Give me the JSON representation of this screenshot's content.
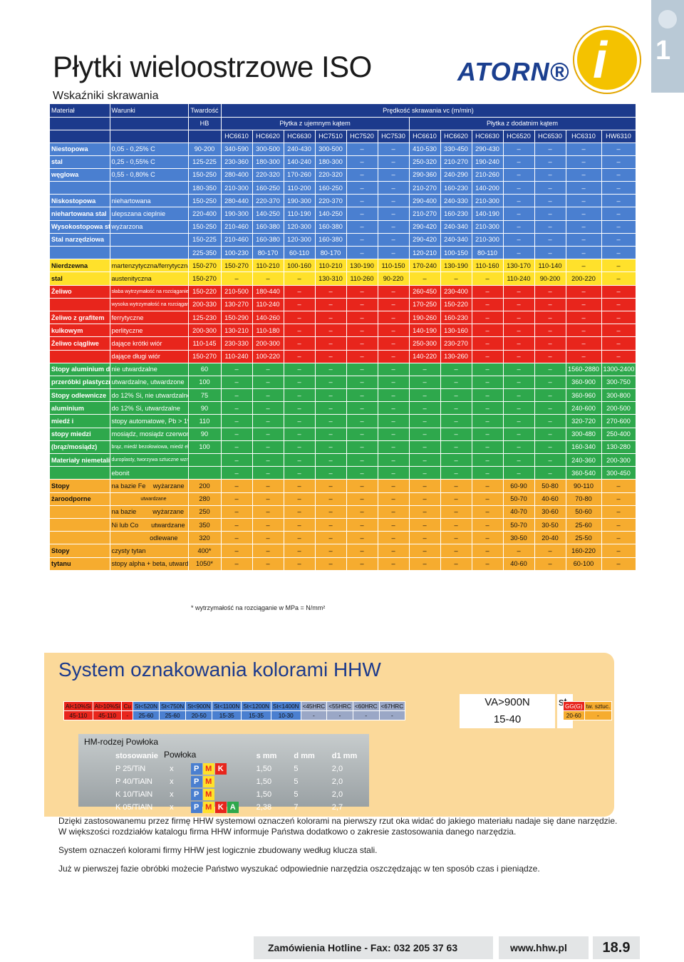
{
  "tab_number": "1",
  "title": "Płytki wieloostrzowe ISO",
  "subtitle": "Wskaźniki skrawania",
  "logo_text": "ATORN®",
  "badge_text": "i",
  "table": {
    "header": {
      "material": "Materiał",
      "conditions": "Warunki",
      "hardness": "Twardość",
      "hb": "HB",
      "speed": "Prędkość skrawania vc (m/min)",
      "group_positive": "Płytka z ujemnym kątem",
      "group_negative": "Płytka z dodatnim kątem",
      "grades": [
        "HC6610",
        "HC6620",
        "HC6630",
        "HC7510",
        "HC7520",
        "HC7530",
        "HC6610",
        "HC6620",
        "HC6630",
        "HC6520",
        "HC6530",
        "HC6310",
        "HW6310"
      ]
    },
    "rows": [
      {
        "c": "blue",
        "m": "Niestopowa",
        "w": "0,05 - 0,25% C",
        "hb": "90-200",
        "v": [
          "340-590",
          "300-500",
          "240-430",
          "300-500",
          "–",
          "–",
          "410-530",
          "330-450",
          "290-430",
          "–",
          "–",
          "–",
          "–"
        ]
      },
      {
        "c": "blue",
        "m": "stal",
        "w": "0,25 - 0,55% C",
        "hb": "125-225",
        "v": [
          "230-360",
          "180-300",
          "140-240",
          "180-300",
          "–",
          "–",
          "250-320",
          "210-270",
          "190-240",
          "–",
          "–",
          "–",
          "–"
        ]
      },
      {
        "c": "blue",
        "m": "węglowa",
        "w": "0,55 - 0,80% C",
        "hb": "150-250",
        "v": [
          "280-400",
          "220-320",
          "170-260",
          "220-320",
          "–",
          "–",
          "290-360",
          "240-290",
          "210-260",
          "–",
          "–",
          "–",
          "–"
        ]
      },
      {
        "c": "blue",
        "m": "",
        "w": "",
        "hb": "180-350",
        "v": [
          "210-300",
          "160-250",
          "110-200",
          "160-250",
          "–",
          "–",
          "210-270",
          "160-230",
          "140-200",
          "–",
          "–",
          "–",
          "–"
        ]
      },
      {
        "c": "blue",
        "m": "Niskostopowa",
        "w": "niehartowana",
        "hb": "150-250",
        "v": [
          "280-440",
          "220-370",
          "190-300",
          "220-370",
          "–",
          "–",
          "290-400",
          "240-330",
          "210-300",
          "–",
          "–",
          "–",
          "–"
        ]
      },
      {
        "c": "blue",
        "m": "niehartowana stal",
        "w": "ulepszana cieplnie",
        "hb": "220-400",
        "v": [
          "190-300",
          "140-250",
          "110-190",
          "140-250",
          "–",
          "–",
          "210-270",
          "160-230",
          "140-190",
          "–",
          "–",
          "–",
          "–"
        ]
      },
      {
        "c": "blue",
        "m": "Wysokostopowa stal",
        "w": "wyżarzona",
        "hb": "150-250",
        "v": [
          "210-460",
          "160-380",
          "120-300",
          "160-380",
          "–",
          "–",
          "290-420",
          "240-340",
          "210-300",
          "–",
          "–",
          "–",
          "–"
        ]
      },
      {
        "c": "blue",
        "m": "Stal narzędziowa",
        "w": "",
        "hb": "150-225",
        "v": [
          "210-460",
          "160-380",
          "120-300",
          "160-380",
          "–",
          "–",
          "290-420",
          "240-340",
          "210-300",
          "–",
          "–",
          "–",
          "–"
        ]
      },
      {
        "c": "blue",
        "m": "",
        "w": "",
        "hb": "225-350",
        "v": [
          "100-230",
          "80-170",
          "60-110",
          "80-170",
          "–",
          "–",
          "120-210",
          "100-150",
          "80-110",
          "–",
          "–",
          "–",
          "–"
        ]
      },
      {
        "c": "yellow",
        "m": "Nierdzewna",
        "w": "martenzytyczna/ferrytyczna",
        "hb": "150-270",
        "v": [
          "150-270",
          "110-210",
          "100-160",
          "110-210",
          "130-190",
          "110-150",
          "170-240",
          "130-190",
          "110-160",
          "130-170",
          "110-140",
          "–",
          "–"
        ]
      },
      {
        "c": "yellow",
        "m": "stal",
        "w": "austenityczna",
        "hb": "150-270",
        "v": [
          "–",
          "–",
          "–",
          "130-310",
          "110-260",
          "90-220",
          "–",
          "–",
          "–",
          "110-240",
          "90-200",
          "200-220",
          "–"
        ]
      },
      {
        "c": "red",
        "m": "Żeliwo",
        "w": "słaba wytrzymałość na rozciąganie",
        "hb": "150-220",
        "v": [
          "210-500",
          "180-440",
          "–",
          "–",
          "–",
          "–",
          "260-450",
          "230-400",
          "–",
          "–",
          "–",
          "–",
          "–"
        ]
      },
      {
        "c": "red",
        "m": "",
        "w": "wysoka wytrzymałość na rozciąganie",
        "hb": "200-330",
        "v": [
          "130-270",
          "110-240",
          "–",
          "–",
          "–",
          "–",
          "170-250",
          "150-220",
          "–",
          "–",
          "–",
          "–",
          "–"
        ]
      },
      {
        "c": "red",
        "m": "Żeliwo z grafitem",
        "w": "ferrytyczne",
        "hb": "125-230",
        "v": [
          "150-290",
          "140-260",
          "–",
          "–",
          "–",
          "–",
          "190-260",
          "160-230",
          "–",
          "–",
          "–",
          "–",
          "–"
        ]
      },
      {
        "c": "red",
        "m": "kulkowym",
        "w": "perlityczne",
        "hb": "200-300",
        "v": [
          "130-210",
          "110-180",
          "–",
          "–",
          "–",
          "–",
          "140-190",
          "130-160",
          "–",
          "–",
          "–",
          "–",
          "–"
        ]
      },
      {
        "c": "red",
        "m": "Żeliwo ciągliwe",
        "w": "dające krótki wiór",
        "hb": "110-145",
        "v": [
          "230-330",
          "200-300",
          "–",
          "–",
          "–",
          "–",
          "250-300",
          "230-270",
          "–",
          "–",
          "–",
          "–",
          "–"
        ]
      },
      {
        "c": "red",
        "m": "",
        "w": "dające długi wiór",
        "hb": "150-270",
        "v": [
          "110-240",
          "100-220",
          "–",
          "–",
          "–",
          "–",
          "140-220",
          "130-260",
          "–",
          "–",
          "–",
          "–",
          "–"
        ]
      },
      {
        "c": "green",
        "m": "Stopy aluminium do",
        "w": "nie utwardzalne",
        "hb": "60",
        "v": [
          "–",
          "–",
          "–",
          "–",
          "–",
          "–",
          "–",
          "–",
          "–",
          "–",
          "–",
          "1560-2880",
          "1300-2400"
        ]
      },
      {
        "c": "green",
        "m": "przeróbki plastycznej",
        "w": "utwardzalne, utwardzone",
        "hb": "100",
        "v": [
          "–",
          "–",
          "–",
          "–",
          "–",
          "–",
          "–",
          "–",
          "–",
          "–",
          "–",
          "360-900",
          "300-750"
        ]
      },
      {
        "c": "green",
        "m": "Stopy odlewnicze",
        "w": "do 12% Si, nie utwardzalne",
        "hb": "75",
        "v": [
          "–",
          "–",
          "–",
          "–",
          "–",
          "–",
          "–",
          "–",
          "–",
          "–",
          "–",
          "360-960",
          "300-800"
        ]
      },
      {
        "c": "green",
        "m": "aluminium",
        "w": "do 12% Si, utwardzalne",
        "hb": "90",
        "v": [
          "–",
          "–",
          "–",
          "–",
          "–",
          "–",
          "–",
          "–",
          "–",
          "–",
          "–",
          "240-600",
          "200-500"
        ]
      },
      {
        "c": "green",
        "m": "miedź i",
        "w": "stopy automatowe, Pb > 1%",
        "hb": "110",
        "v": [
          "–",
          "–",
          "–",
          "–",
          "–",
          "–",
          "–",
          "–",
          "–",
          "–",
          "–",
          "320-720",
          "270-600"
        ]
      },
      {
        "c": "green",
        "m": "stopy miedzi",
        "w": "mosiądz, mosiądz czerwony",
        "hb": "90",
        "v": [
          "–",
          "–",
          "–",
          "–",
          "–",
          "–",
          "–",
          "–",
          "–",
          "–",
          "–",
          "300-480",
          "250-400"
        ]
      },
      {
        "c": "green",
        "m": "(brąz/mosiądz)",
        "w": "brąz, miedź bezołowiowa, miedź elektrolityczna",
        "hb": "100",
        "v": [
          "–",
          "–",
          "–",
          "–",
          "–",
          "–",
          "–",
          "–",
          "–",
          "–",
          "–",
          "160-340",
          "130-280"
        ]
      },
      {
        "c": "green",
        "m": "Materiały niemetaliczne",
        "w": "duroplasty, tworzywa sztuczne wzmocnione włóknem",
        "hb": "",
        "v": [
          "–",
          "–",
          "–",
          "–",
          "–",
          "–",
          "–",
          "–",
          "–",
          "–",
          "–",
          "240-360",
          "200-300"
        ]
      },
      {
        "c": "green",
        "m": "",
        "w": "ebonit",
        "hb": "",
        "v": [
          "–",
          "–",
          "–",
          "–",
          "–",
          "–",
          "–",
          "–",
          "–",
          "–",
          "–",
          "360-540",
          "300-450"
        ]
      },
      {
        "c": "orange",
        "m": "Stopy",
        "w": "na bazie Fe    wyżarzane",
        "hb": "200",
        "v": [
          "–",
          "–",
          "–",
          "–",
          "–",
          "–",
          "–",
          "–",
          "–",
          "60-90",
          "50-80",
          "90-110",
          "–"
        ]
      },
      {
        "c": "orange",
        "m": "żaroodporne",
        "w": "                     utwardzane",
        "hb": "280",
        "v": [
          "–",
          "–",
          "–",
          "–",
          "–",
          "–",
          "–",
          "–",
          "–",
          "50-70",
          "40-60",
          "70-80",
          "–"
        ]
      },
      {
        "c": "orange",
        "m": "",
        "w": "na bazie         wyżarzane",
        "hb": "250",
        "v": [
          "–",
          "–",
          "–",
          "–",
          "–",
          "–",
          "–",
          "–",
          "–",
          "40-70",
          "30-60",
          "50-60",
          "–"
        ]
      },
      {
        "c": "orange",
        "m": "",
        "w": "Ni lub Co       utwardzane",
        "hb": "350",
        "v": [
          "–",
          "–",
          "–",
          "–",
          "–",
          "–",
          "–",
          "–",
          "–",
          "50-70",
          "30-50",
          "25-60",
          "–"
        ]
      },
      {
        "c": "orange",
        "m": "",
        "w": "                     odlewane",
        "hb": "320",
        "v": [
          "–",
          "–",
          "–",
          "–",
          "–",
          "–",
          "–",
          "–",
          "–",
          "30-50",
          "20-40",
          "25-50",
          "–"
        ]
      },
      {
        "c": "orange",
        "m": "Stopy",
        "w": "czysty tytan",
        "hb": "400*",
        "v": [
          "–",
          "–",
          "–",
          "–",
          "–",
          "–",
          "–",
          "–",
          "–",
          "–",
          "–",
          "160-220",
          "–"
        ]
      },
      {
        "c": "orange",
        "m": "tytanu",
        "w": "stopy alpha + beta, utwardzane",
        "hb": "1050*",
        "v": [
          "–",
          "–",
          "–",
          "–",
          "–",
          "–",
          "–",
          "–",
          "–",
          "40-60",
          "–",
          "60-100",
          "–"
        ]
      }
    ]
  },
  "footnote": "* wytrzymałość na rozciąganie w MPa = N/mm²",
  "system": {
    "title": "System oznakowania kolorami HHW",
    "scale_top": [
      {
        "t": "Al<10%Si",
        "c": "#e8251c"
      },
      {
        "t": "Al>10%Si",
        "c": "#e8251c"
      },
      {
        "t": "Cu",
        "c": "#e8251c"
      },
      {
        "t": "St<520N",
        "c": "#4a7fd0"
      },
      {
        "t": "St<750N",
        "c": "#4a7fd0"
      },
      {
        "t": "St<900N",
        "c": "#4a7fd0"
      },
      {
        "t": "St<1100N",
        "c": "#4a7fd0"
      },
      {
        "t": "St<1200N",
        "c": "#4a7fd0"
      },
      {
        "t": "St<1400N",
        "c": "#4a7fd0"
      },
      {
        "t": "<45HRC",
        "c": "#9aa7c6"
      },
      {
        "t": "<55HRC",
        "c": "#9aa7c6"
      },
      {
        "t": "<60HRC",
        "c": "#9aa7c6"
      },
      {
        "t": "<67HRC",
        "c": "#9aa7c6"
      }
    ],
    "scale_bottom": [
      "45-110",
      "45-110",
      "-",
      "25-60",
      "25-60",
      "20-50",
      "15-35",
      "15-35",
      "10-30",
      "-",
      "-",
      "-",
      "-"
    ],
    "big_top": "VA>900N",
    "big_bottom": "15-40",
    "big_side": "st",
    "tail_top": [
      "GG(G)",
      "tw. sztuc."
    ],
    "tail_bottom": [
      "20-60",
      "-"
    ],
    "tool": {
      "label1": "HM-rodzej Powłoka",
      "label2": "Powłoka",
      "header": [
        "stosowanie",
        "s mm",
        "d mm",
        "d1 mm"
      ],
      "rows": [
        [
          "P 25/TiN",
          "x",
          "PMK",
          "1,50",
          "5",
          "2,0"
        ],
        [
          "P 40/TiAlN",
          "x",
          "PM",
          "1,50",
          "5",
          "2,0"
        ],
        [
          "K 10/TiAlN",
          "x",
          "PM",
          "1,50",
          "5",
          "2,0"
        ],
        [
          "K 05/TiAlN",
          "x",
          "PMKA",
          "2,38",
          "7",
          "2,7"
        ]
      ]
    }
  },
  "paragraphs": {
    "p1": "Dzięki zastosowanemu przez firmę HHW systemowi oznaczeń kolorami na pierwszy rzut oka widać do jakiego materiału nadaje się dane narzędzie. W większości rozdziałów katalogu firma HHW informuje Państwa dodatkowo o zakresie zastosowania danego narzędzia.",
    "p2": "System oznaczeń kolorami firmy HHW jest logicznie zbudowany według klucza stali.",
    "p3": "Już w pierwszej fazie obróbki możecie Państwo wyszukać odpowiednie narzędzia oszczędzając w ten sposób czas i pieniądze."
  },
  "footer": {
    "hotline": "Zamówienia Hotline - Fax: 032 205 37 63",
    "url": "www.hhw.pl",
    "page": "18.9"
  }
}
